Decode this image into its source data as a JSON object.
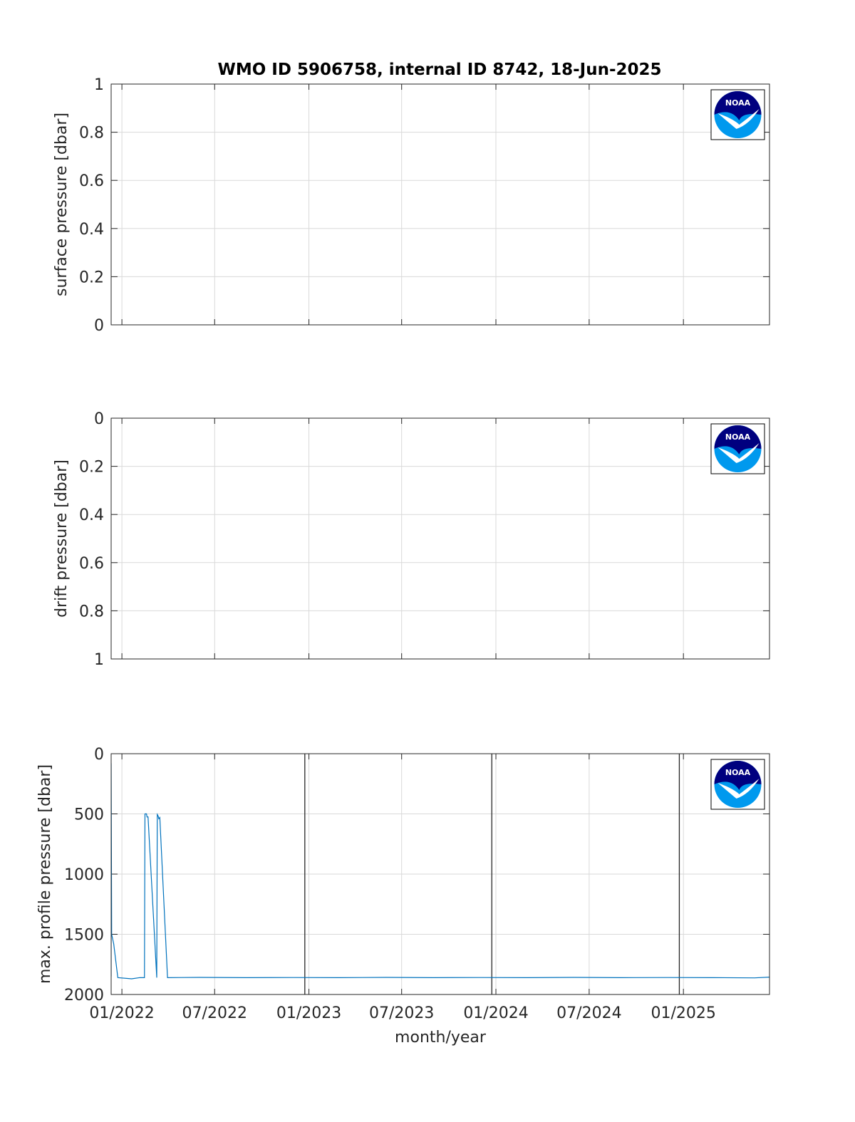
{
  "figure": {
    "title": "WMO ID 5906758, internal ID 8742, 18-Jun-2025"
  },
  "colors": {
    "series": "#0072bd",
    "noaa_dark": "#00007f",
    "noaa_light": "#0099ee"
  },
  "logo": {
    "icon": "noaa-logo-icon",
    "text": "NOAA"
  },
  "chart_data": [
    {
      "type": "line",
      "ylabel": "surface pressure [dbar]",
      "xlabel": "",
      "xlim": [
        "2021-12-11",
        "2025-06-18"
      ],
      "ylim": [
        0,
        1
      ],
      "y_reversed": false,
      "yticks": [
        "0",
        "0.2",
        "0.4",
        "0.6",
        "0.8",
        "1"
      ],
      "xticks": [
        "01/2022",
        "07/2022",
        "01/2023",
        "07/2023",
        "01/2024",
        "07/2024",
        "01/2025"
      ],
      "x_tick_labels_shown": false,
      "grid": true,
      "series": []
    },
    {
      "type": "line",
      "ylabel": "drift pressure [dbar]",
      "xlabel": "",
      "xlim": [
        "2021-12-11",
        "2025-06-18"
      ],
      "ylim": [
        0,
        1
      ],
      "y_reversed": true,
      "yticks": [
        "0",
        "0.2",
        "0.4",
        "0.6",
        "0.8",
        "1"
      ],
      "xticks": [
        "01/2022",
        "07/2022",
        "01/2023",
        "07/2023",
        "01/2024",
        "07/2024",
        "01/2025"
      ],
      "x_tick_labels_shown": false,
      "grid": true,
      "series": []
    },
    {
      "type": "line",
      "ylabel": "max. profile pressure [dbar]",
      "xlabel": "month/year",
      "xlim": [
        "2021-12-11",
        "2025-06-18"
      ],
      "ylim": [
        0,
        2000
      ],
      "y_reversed": true,
      "yticks": [
        "0",
        "500",
        "1000",
        "1500",
        "2000"
      ],
      "xticks": [
        "01/2022",
        "07/2022",
        "01/2023",
        "07/2023",
        "01/2024",
        "07/2024",
        "01/2025"
      ],
      "x_tick_labels_shown": true,
      "grid": true,
      "vertical_lines": [
        "2022-12-24",
        "2023-12-24",
        "2024-12-24"
      ],
      "series": [
        {
          "points": [
            [
              "2021-12-11",
              1850
            ],
            [
              "2021-12-11",
              80
            ],
            [
              "2021-12-12",
              1500
            ],
            [
              "2021-12-16",
              1580
            ],
            [
              "2021-12-24",
              1860
            ],
            [
              "2022-01-20",
              1870
            ],
            [
              "2022-02-05",
              1860
            ],
            [
              "2022-02-14",
              1860
            ],
            [
              "2022-02-15",
              500
            ],
            [
              "2022-02-18",
              500
            ],
            [
              "2022-02-19",
              525
            ],
            [
              "2022-02-21",
              525
            ],
            [
              "2022-03-10",
              1860
            ],
            [
              "2022-03-11",
              505
            ],
            [
              "2022-03-13",
              520
            ],
            [
              "2022-03-14",
              540
            ],
            [
              "2022-03-16",
              530
            ],
            [
              "2022-03-31",
              1860
            ],
            [
              "2022-06-01",
              1858
            ],
            [
              "2022-09-01",
              1860
            ],
            [
              "2022-12-01",
              1859
            ],
            [
              "2023-03-01",
              1860
            ],
            [
              "2023-06-01",
              1858
            ],
            [
              "2023-09-01",
              1860
            ],
            [
              "2023-12-01",
              1859
            ],
            [
              "2024-03-01",
              1860
            ],
            [
              "2024-06-01",
              1858
            ],
            [
              "2024-09-01",
              1860
            ],
            [
              "2024-12-01",
              1859
            ],
            [
              "2025-03-01",
              1860
            ],
            [
              "2025-05-20",
              1862
            ],
            [
              "2025-06-18",
              1856
            ]
          ]
        }
      ]
    }
  ]
}
